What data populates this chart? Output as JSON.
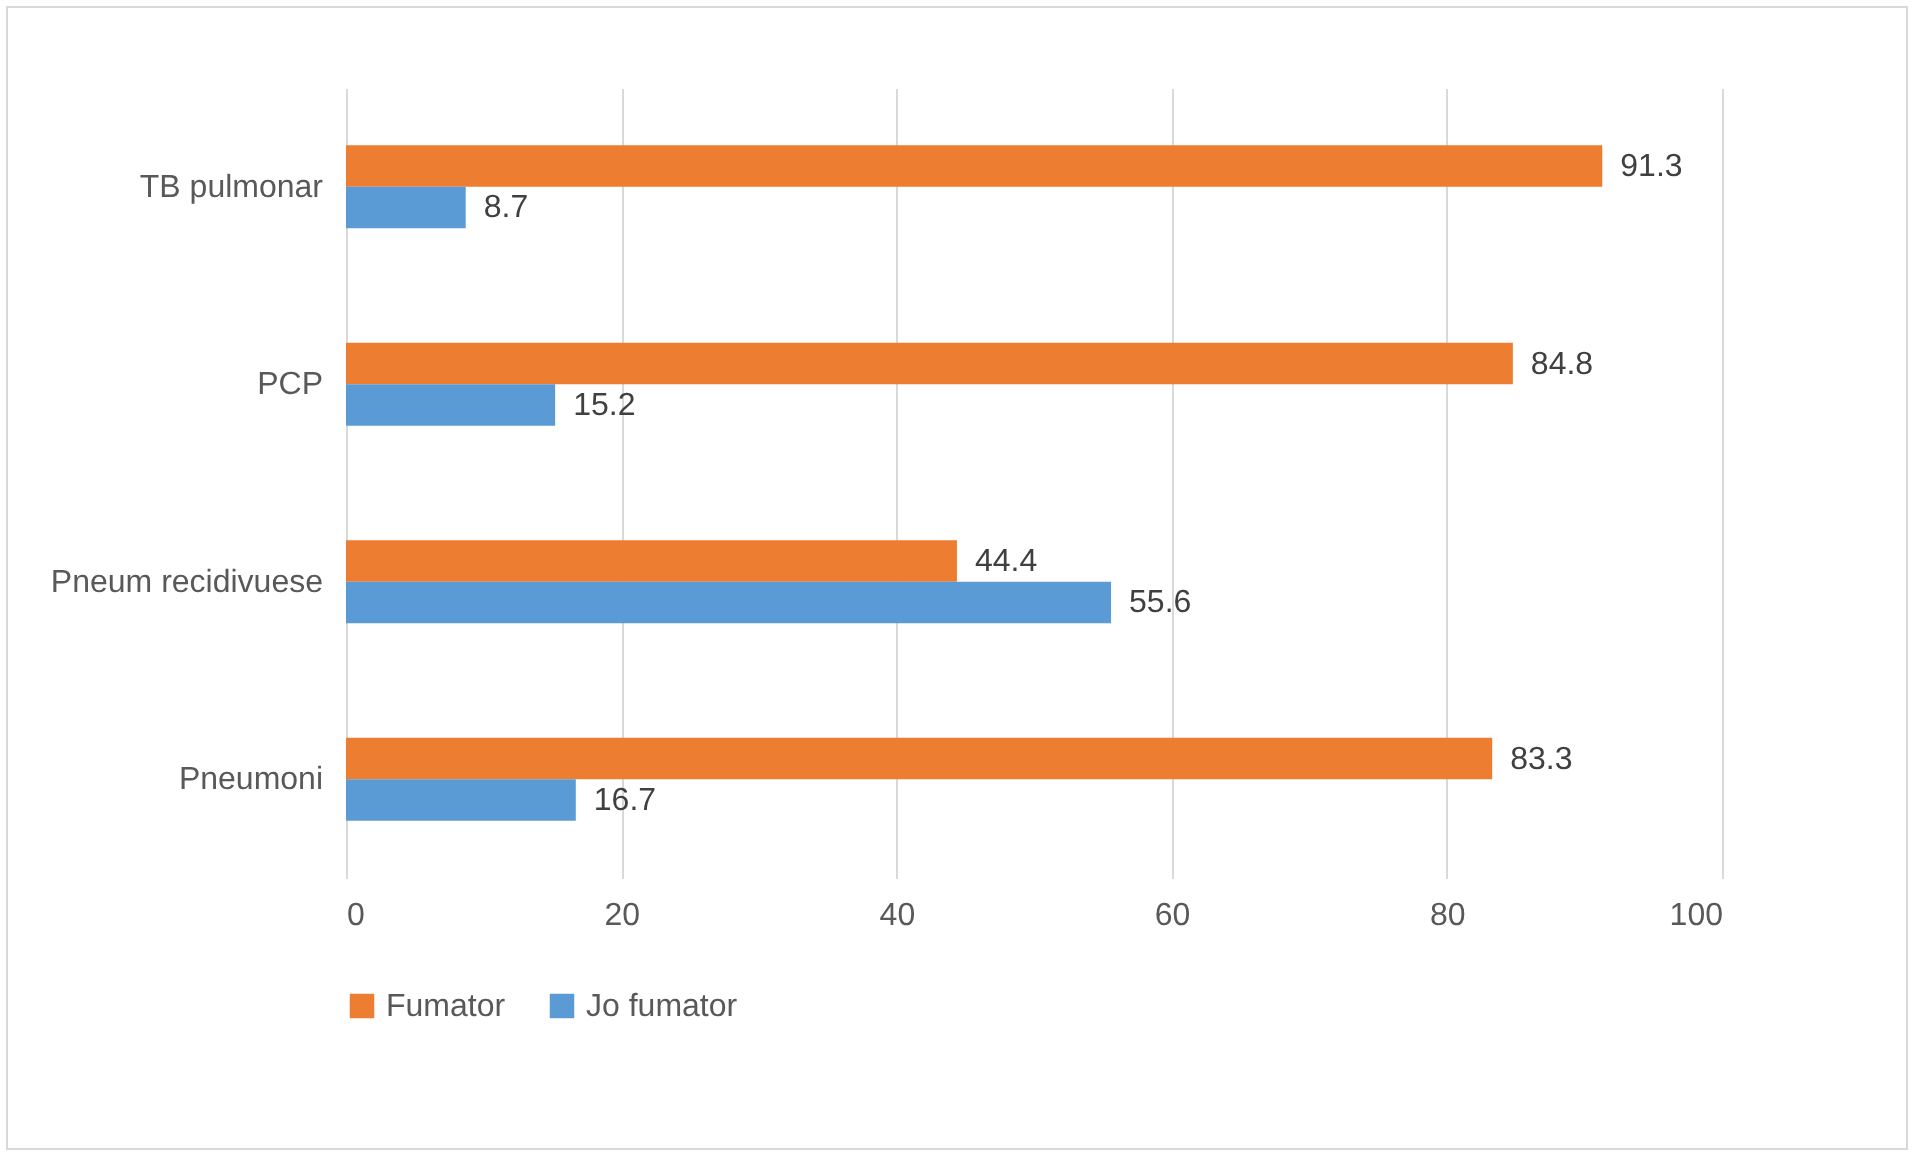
{
  "chart_data": {
    "type": "bar",
    "orientation": "horizontal",
    "categories": [
      "TB pulmonar",
      "PCP",
      "Pneum recidivuese",
      "Pneumoni"
    ],
    "series": [
      {
        "name": "Fumator",
        "color": "#ed7d31",
        "values": [
          91.3,
          84.8,
          44.4,
          83.3
        ]
      },
      {
        "name": "Jo fumator",
        "color": "#5b9bd5",
        "values": [
          8.7,
          15.2,
          55.6,
          16.7
        ]
      }
    ],
    "xlim": [
      0,
      100
    ],
    "xticks": [
      0,
      20,
      40,
      60,
      80,
      100
    ],
    "grid": "x",
    "legend": "bottom",
    "data_labels": true
  }
}
